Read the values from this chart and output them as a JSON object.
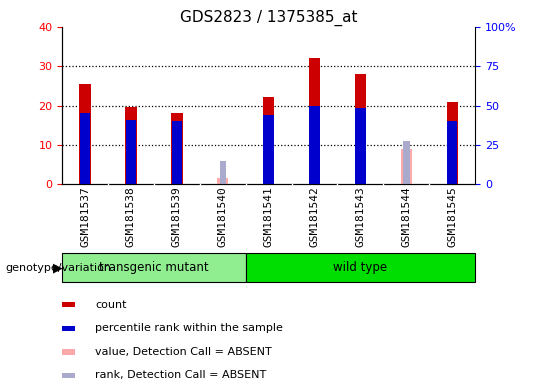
{
  "title": "GDS2823 / 1375385_at",
  "samples": [
    "GSM181537",
    "GSM181538",
    "GSM181539",
    "GSM181540",
    "GSM181541",
    "GSM181542",
    "GSM181543",
    "GSM181544",
    "GSM181545"
  ],
  "count_values": [
    25.5,
    19.7,
    18.0,
    0.0,
    22.2,
    32.2,
    28.0,
    0.0,
    20.8
  ],
  "rank_values": [
    18.2,
    16.3,
    16.0,
    0.0,
    17.5,
    19.8,
    19.5,
    0.0,
    16.2
  ],
  "absent_count": [
    0.0,
    0.0,
    0.0,
    1.5,
    0.0,
    0.0,
    0.0,
    9.0,
    0.0
  ],
  "absent_rank": [
    0.0,
    0.0,
    0.0,
    5.8,
    0.0,
    0.0,
    0.0,
    11.0,
    0.0
  ],
  "groups": [
    {
      "label": "transgenic mutant",
      "samples": [
        0,
        1,
        2,
        3
      ],
      "color": "#90EE90"
    },
    {
      "label": "wild type",
      "samples": [
        4,
        5,
        6,
        7,
        8
      ],
      "color": "#00DD00"
    }
  ],
  "ylim_left": [
    0,
    40
  ],
  "ylim_right": [
    0,
    100
  ],
  "yticks_left": [
    0,
    10,
    20,
    30,
    40
  ],
  "yticks_right": [
    0,
    25,
    50,
    75,
    100
  ],
  "ytick_labels_left": [
    "0",
    "10",
    "20",
    "30",
    "40"
  ],
  "ytick_labels_right": [
    "0",
    "25",
    "50",
    "75",
    "100%"
  ],
  "bar_width": 0.25,
  "count_color": "#cc0000",
  "rank_color": "#0000cc",
  "absent_count_color": "#ffaaaa",
  "absent_rank_color": "#aaaacc",
  "bg_color": "#c8c8c8",
  "plot_bg": "#ffffff",
  "legend_items": [
    {
      "label": "count",
      "color": "#cc0000"
    },
    {
      "label": "percentile rank within the sample",
      "color": "#0000cc"
    },
    {
      "label": "value, Detection Call = ABSENT",
      "color": "#ffaaaa"
    },
    {
      "label": "rank, Detection Call = ABSENT",
      "color": "#aaaacc"
    }
  ],
  "group_label_text": "genotype/variation",
  "title_fontsize": 11,
  "tick_fontsize": 8,
  "legend_fontsize": 8
}
